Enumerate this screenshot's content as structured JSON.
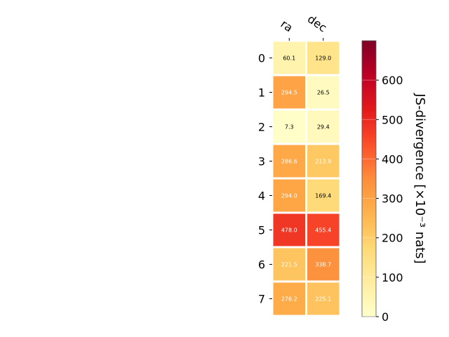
{
  "chart_data": {
    "type": "heatmap",
    "title": "",
    "columns": [
      "ra",
      "dec"
    ],
    "rows": [
      "0",
      "1",
      "2",
      "3",
      "4",
      "5",
      "6",
      "7"
    ],
    "values": [
      [
        60.1,
        129.0
      ],
      [
        294.5,
        26.5
      ],
      [
        7.3,
        29.4
      ],
      [
        286.6,
        213.9
      ],
      [
        294.0,
        169.4
      ],
      [
        478.0,
        455.4
      ],
      [
        221.5,
        338.7
      ],
      [
        276.2,
        225.1
      ]
    ],
    "value_labels": [
      [
        "60.1",
        "129.0"
      ],
      [
        "294.5",
        "26.5"
      ],
      [
        "7.3",
        "29.4"
      ],
      [
        "286.6",
        "213.9"
      ],
      [
        "294.0",
        "169.4"
      ],
      [
        "478.0",
        "455.4"
      ],
      [
        "221.5",
        "338.7"
      ],
      [
        "276.2",
        "225.1"
      ]
    ],
    "colorbar": {
      "label": "JS-divergence [×10⁻³ nats]",
      "range": [
        0,
        700
      ],
      "ticks": [
        0,
        100,
        200,
        300,
        400,
        500,
        600
      ],
      "tick_labels": [
        "0",
        "100",
        "200",
        "300",
        "400",
        "500",
        "600"
      ],
      "colormap": "YlOrRd"
    },
    "grid": false,
    "cell_border_color": "#ffffff",
    "text_color_light": "#ffffff",
    "text_color_dark": "#000000"
  }
}
